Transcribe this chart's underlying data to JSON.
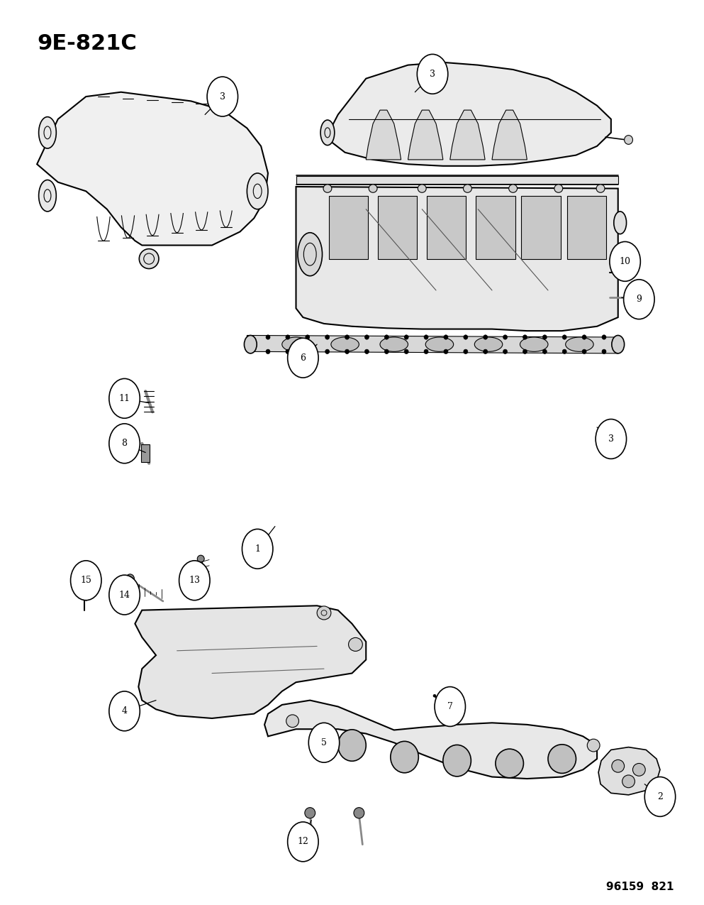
{
  "title": "9E-821C",
  "footer": "96159  821",
  "background_color": "#ffffff",
  "line_color": "#000000",
  "title_fontsize": 22,
  "footer_fontsize": 11,
  "fig_width": 9.93,
  "fig_height": 12.75,
  "dpi": 100
}
